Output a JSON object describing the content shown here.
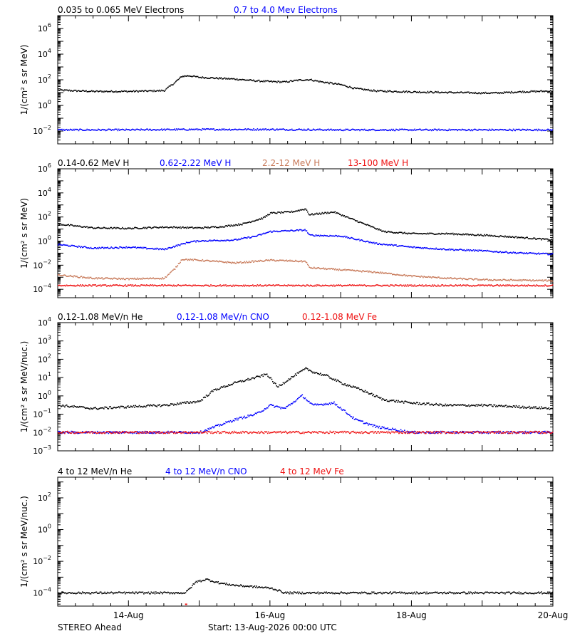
{
  "footer": {
    "spacecraft": "STEREO Ahead",
    "start": "Start: 13-Aug-2026 00:00 UTC"
  },
  "x_axis": {
    "range_days": [
      13,
      20
    ],
    "tick_labels": [
      {
        "day": 14,
        "label": "14-Aug"
      },
      {
        "day": 16,
        "label": "16-Aug"
      },
      {
        "day": 18,
        "label": "18-Aug"
      },
      {
        "day": 20,
        "label": "20-Aug"
      }
    ]
  },
  "chart_data": [
    {
      "type": "scatter",
      "log_y": true,
      "ylim": [
        0.001,
        10000000
      ],
      "ylabel": "1/(cm² s sr MeV)",
      "ytick_exponents": [
        -2,
        0,
        2,
        4,
        6
      ],
      "series": [
        {
          "name": "0.035 to 0.065 MeV Electrons",
          "color": "#000000",
          "points": [
            [
              13.0,
              15
            ],
            [
              13.5,
              12
            ],
            [
              14.0,
              12
            ],
            [
              14.3,
              13
            ],
            [
              14.5,
              14
            ],
            [
              14.65,
              60
            ],
            [
              14.75,
              180
            ],
            [
              14.85,
              200
            ],
            [
              15.0,
              150
            ],
            [
              15.5,
              110
            ],
            [
              15.8,
              80
            ],
            [
              16.0,
              70
            ],
            [
              16.2,
              65
            ],
            [
              16.4,
              90
            ],
            [
              16.55,
              100
            ],
            [
              16.7,
              70
            ],
            [
              17.0,
              40
            ],
            [
              17.2,
              20
            ],
            [
              17.5,
              13
            ],
            [
              18.0,
              11
            ],
            [
              18.5,
              10
            ],
            [
              19.0,
              9
            ],
            [
              19.2,
              9
            ],
            [
              19.5,
              11
            ],
            [
              20.0,
              13
            ]
          ]
        },
        {
          "name": "0.7 to 4.0 Mev Electrons",
          "color": "#0000ff",
          "points": [
            [
              13.0,
              0.012
            ],
            [
              14.0,
              0.012
            ],
            [
              15.0,
              0.013
            ],
            [
              16.0,
              0.013
            ],
            [
              17.0,
              0.012
            ],
            [
              18.0,
              0.012
            ],
            [
              19.0,
              0.012
            ],
            [
              20.0,
              0.012
            ]
          ]
        }
      ]
    },
    {
      "type": "scatter",
      "log_y": true,
      "ylim": [
        2e-05,
        1000000
      ],
      "ylabel": "1/(cm² s sr MeV)",
      "ytick_exponents": [
        -4,
        -2,
        0,
        2,
        4,
        6
      ],
      "series": [
        {
          "name": "0.14-0.62 MeV H",
          "color": "#000000",
          "points": [
            [
              13.0,
              25
            ],
            [
              13.5,
              12
            ],
            [
              14.0,
              11
            ],
            [
              14.5,
              14
            ],
            [
              15.0,
              12
            ],
            [
              15.3,
              15
            ],
            [
              15.6,
              25
            ],
            [
              15.9,
              80
            ],
            [
              16.0,
              200
            ],
            [
              16.3,
              260
            ],
            [
              16.5,
              450
            ],
            [
              16.55,
              150
            ],
            [
              16.9,
              250
            ],
            [
              17.2,
              50
            ],
            [
              17.6,
              6
            ],
            [
              18.0,
              4
            ],
            [
              18.5,
              4
            ],
            [
              19.0,
              3
            ],
            [
              19.5,
              2
            ],
            [
              20.0,
              1.2
            ]
          ]
        },
        {
          "name": "0.62-2.22 MeV H",
          "color": "#0000ff",
          "points": [
            [
              13.0,
              0.5
            ],
            [
              13.5,
              0.25
            ],
            [
              14.0,
              0.3
            ],
            [
              14.5,
              0.2
            ],
            [
              14.85,
              0.8
            ],
            [
              15.0,
              1.0
            ],
            [
              15.5,
              1.2
            ],
            [
              15.8,
              2.5
            ],
            [
              16.0,
              6
            ],
            [
              16.5,
              8
            ],
            [
              16.55,
              3
            ],
            [
              17.0,
              2.5
            ],
            [
              17.5,
              0.6
            ],
            [
              18.0,
              0.3
            ],
            [
              18.5,
              0.2
            ],
            [
              19.0,
              0.15
            ],
            [
              19.5,
              0.1
            ],
            [
              20.0,
              0.08
            ]
          ]
        },
        {
          "name": "2.2-12 MeV H",
          "color": "#c87a5a",
          "points": [
            [
              13.0,
              0.0015
            ],
            [
              13.5,
              0.0008
            ],
            [
              14.0,
              0.0007
            ],
            [
              14.5,
              0.0008
            ],
            [
              14.65,
              0.005
            ],
            [
              14.75,
              0.03
            ],
            [
              15.0,
              0.025
            ],
            [
              15.5,
              0.015
            ],
            [
              16.0,
              0.025
            ],
            [
              16.5,
              0.02
            ],
            [
              16.55,
              0.006
            ],
            [
              17.0,
              0.004
            ],
            [
              17.5,
              0.0025
            ],
            [
              18.0,
              0.0012
            ],
            [
              18.5,
              0.0008
            ],
            [
              19.0,
              0.0006
            ],
            [
              20.0,
              0.0005
            ]
          ]
        },
        {
          "name": "13-100 MeV H",
          "color": "#ee1111",
          "points": [
            [
              13.0,
              0.0002
            ],
            [
              14.0,
              0.0002
            ],
            [
              15.0,
              0.0002
            ],
            [
              16.0,
              0.0002
            ],
            [
              17.0,
              0.0002
            ],
            [
              18.0,
              0.0002
            ],
            [
              19.0,
              0.0002
            ],
            [
              20.0,
              0.0002
            ]
          ]
        }
      ]
    },
    {
      "type": "scatter",
      "log_y": true,
      "ylim": [
        0.001,
        10000
      ],
      "ylabel": "1/(cm² s sr MeV/nuc.)",
      "ytick_exponents": [
        -3,
        -2,
        -1,
        0,
        1,
        2,
        3,
        4
      ],
      "series": [
        {
          "name": "0.12-1.08 MeV/n He",
          "color": "#000000",
          "points": [
            [
              13.0,
              0.3
            ],
            [
              13.5,
              0.2
            ],
            [
              14.0,
              0.25
            ],
            [
              14.5,
              0.3
            ],
            [
              15.0,
              0.5
            ],
            [
              15.2,
              2
            ],
            [
              15.5,
              5
            ],
            [
              15.8,
              10
            ],
            [
              15.95,
              15
            ],
            [
              16.1,
              3
            ],
            [
              16.3,
              10
            ],
            [
              16.5,
              30
            ],
            [
              16.6,
              20
            ],
            [
              16.8,
              12
            ],
            [
              17.0,
              5
            ],
            [
              17.3,
              2
            ],
            [
              17.6,
              0.6
            ],
            [
              18.0,
              0.4
            ],
            [
              18.5,
              0.3
            ],
            [
              19.0,
              0.3
            ],
            [
              19.5,
              0.25
            ],
            [
              20.0,
              0.2
            ]
          ]
        },
        {
          "name": "0.12-1.08 MeV/n CNO",
          "color": "#0000ff",
          "points": [
            [
              13.0,
              0.01
            ],
            [
              14.0,
              0.01
            ],
            [
              15.0,
              0.01
            ],
            [
              15.5,
              0.05
            ],
            [
              15.8,
              0.1
            ],
            [
              16.0,
              0.3
            ],
            [
              16.2,
              0.2
            ],
            [
              16.45,
              1.0
            ],
            [
              16.6,
              0.3
            ],
            [
              16.9,
              0.4
            ],
            [
              17.0,
              0.2
            ],
            [
              17.2,
              0.05
            ],
            [
              17.5,
              0.02
            ],
            [
              18.0,
              0.01
            ],
            [
              19.0,
              0.01
            ],
            [
              20.0,
              0.01
            ]
          ]
        },
        {
          "name": "0.12-1.08 MeV Fe",
          "color": "#ee1111",
          "points": [
            [
              13.0,
              0.01
            ],
            [
              14.0,
              0.01
            ],
            [
              15.0,
              0.01
            ],
            [
              16.0,
              0.01
            ],
            [
              17.0,
              0.01
            ],
            [
              18.0,
              0.01
            ],
            [
              19.0,
              0.01
            ],
            [
              20.0,
              0.01
            ]
          ]
        }
      ]
    },
    {
      "type": "scatter",
      "log_y": true,
      "ylim": [
        1.5e-05,
        2000
      ],
      "ylabel": "1/(cm² s sr MeV/nuc.)",
      "ytick_exponents": [
        -4,
        -2,
        0,
        2
      ],
      "series": [
        {
          "name": "4 to 12 MeV/n He",
          "color": "#000000",
          "points": [
            [
              13.0,
              0.0001
            ],
            [
              14.0,
              0.0001
            ],
            [
              14.8,
              0.0001
            ],
            [
              14.95,
              0.0005
            ],
            [
              15.1,
              0.0007
            ],
            [
              15.3,
              0.0004
            ],
            [
              15.5,
              0.0003
            ],
            [
              16.0,
              0.0002
            ],
            [
              16.1,
              0.00015
            ],
            [
              16.2,
              0.0001
            ],
            [
              17.0,
              0.0001
            ],
            [
              18.0,
              0.0001
            ],
            [
              19.0,
              0.0001
            ],
            [
              20.0,
              0.0001
            ]
          ]
        },
        {
          "name": "4 to 12 MeV/n CNO",
          "color": "#0000ff",
          "points": []
        },
        {
          "name": "4 to 12 MeV Fe",
          "color": "#ee1111",
          "points": [
            [
              14.8,
              1e-05
            ]
          ]
        }
      ]
    }
  ]
}
